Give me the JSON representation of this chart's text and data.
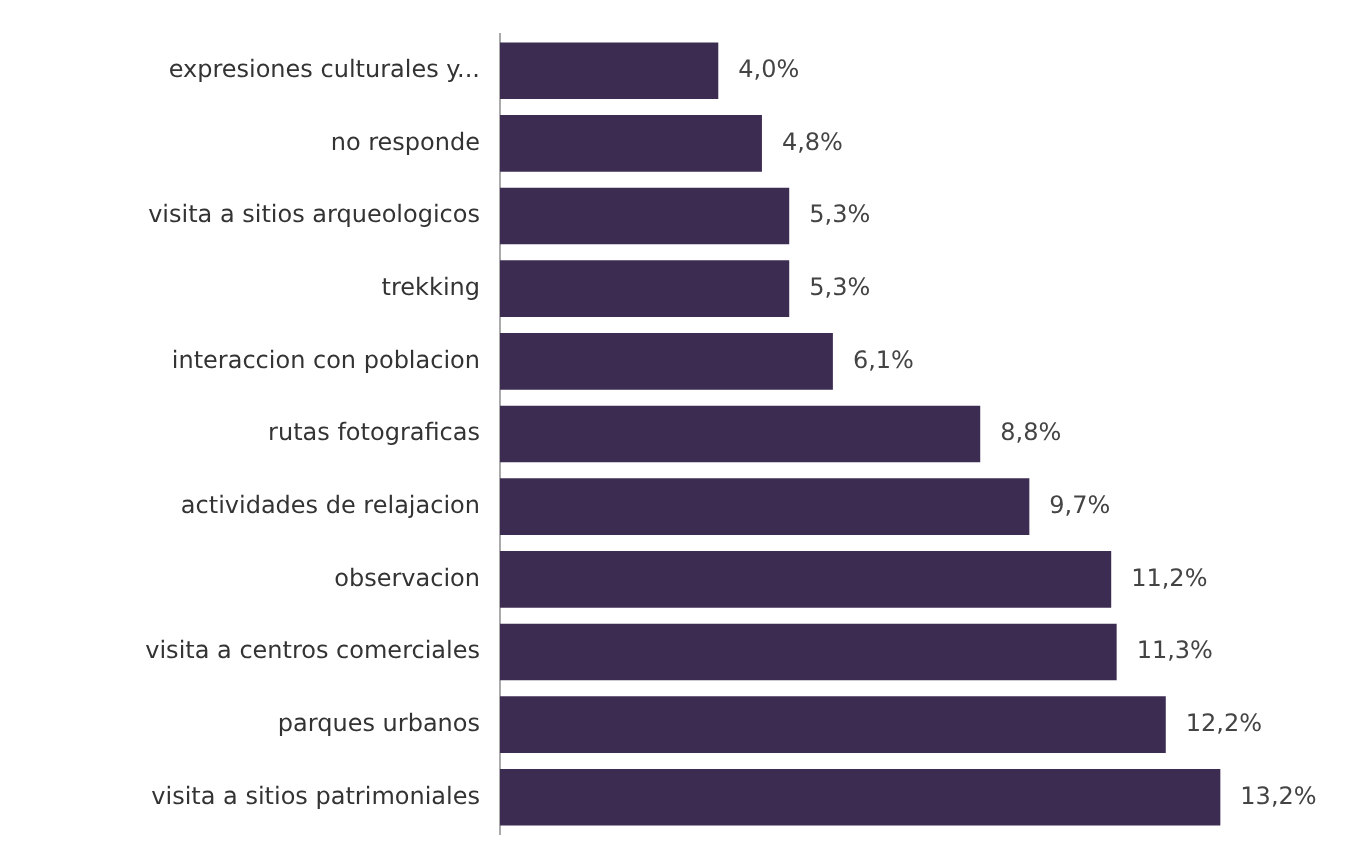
{
  "chart_data": {
    "type": "bar",
    "orientation": "horizontal",
    "categories": [
      "expresiones culturales y...",
      "no responde",
      "visita a sitios arqueologicos",
      "trekking",
      "interaccion con poblacion",
      "rutas fotograficas",
      "actividades de relajacion",
      "observacion",
      "visita a centros comerciales",
      "parques urbanos",
      "visita a sitios patrimoniales"
    ],
    "values": [
      4.0,
      4.8,
      5.3,
      5.3,
      6.1,
      8.8,
      9.7,
      11.2,
      11.3,
      12.2,
      13.2
    ],
    "value_labels": [
      "4,0%",
      "4,8%",
      "5,3%",
      "5,3%",
      "6,1%",
      "8,8%",
      "9,7%",
      "11,2%",
      "11,3%",
      "12,2%",
      "13,2%"
    ],
    "color": "#3d2c52",
    "grid": false,
    "legend": false
  }
}
